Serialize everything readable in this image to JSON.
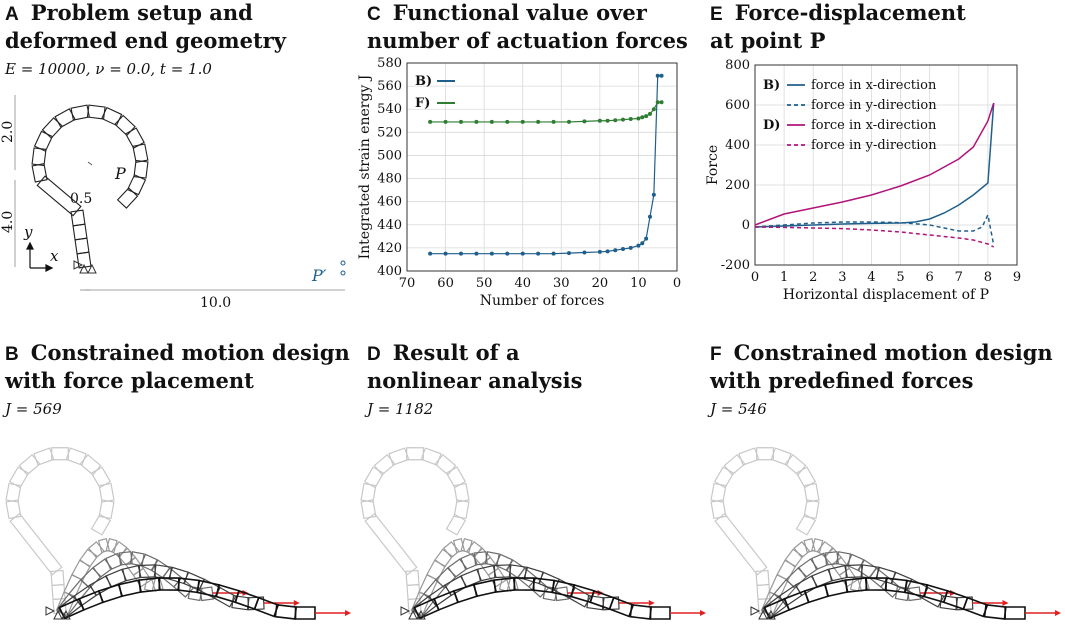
{
  "panelA": {
    "letter": "A",
    "title_line1": "Problem setup and",
    "title_line2": "deformed end geometry",
    "params": "E = 10000, ν = 0.0, t = 1.0",
    "dim_height_top": "2.0",
    "dim_height_bottom": "4.0",
    "dim_radius": "0.5",
    "dim_width": "10.0",
    "point_label": "P",
    "target_label": "P′",
    "axis_y": "y",
    "axis_x": "x"
  },
  "panelB": {
    "letter": "B",
    "title_line1": "Constrained motion design",
    "title_line2": "with force placement",
    "j_value": "J = 569"
  },
  "panelC": {
    "letter": "C",
    "title_line1": "Functional value over",
    "title_line2": "number of actuation forces"
  },
  "panelD": {
    "letter": "D",
    "title_line1": "Result of a",
    "title_line2": "nonlinear analysis",
    "j_value": "J = 1182"
  },
  "panelE": {
    "letter": "E",
    "title_line1": "Force-displacement",
    "title_line2": "at point P"
  },
  "panelF": {
    "letter": "F",
    "title_line1": "Constrained motion design",
    "title_line2": "with predefined forces",
    "j_value": "J = 546"
  },
  "colors": {
    "blue": "#1f5f8b",
    "green": "#2e7d32",
    "magenta": "#b0147a",
    "grid": "#d9d9d9"
  },
  "chart_data": [
    {
      "type": "scatter",
      "title": "Functional value over number of actuation forces",
      "xlabel": "Number of forces",
      "ylabel": "Integrated strain energy J",
      "xlim": [
        70,
        0
      ],
      "ylim": [
        400,
        580
      ],
      "xticks": [
        "70",
        "60",
        "50",
        "40",
        "30",
        "20",
        "10",
        "0"
      ],
      "yticks": [
        "400",
        "420",
        "440",
        "460",
        "480",
        "500",
        "520",
        "540",
        "560",
        "580"
      ],
      "legend": [
        {
          "label": "B)",
          "color": "#1f5f8b"
        },
        {
          "label": "F)",
          "color": "#2e7d32"
        }
      ],
      "series": [
        {
          "name": "B)",
          "x": [
            64,
            60,
            56,
            52,
            48,
            44,
            40,
            36,
            32,
            28,
            24,
            20,
            18,
            16,
            14,
            12,
            10,
            9,
            8,
            7,
            6,
            5,
            4
          ],
          "y": [
            415,
            415,
            415,
            415,
            415,
            415,
            415,
            415,
            415,
            415.5,
            416,
            416.5,
            417,
            418,
            419,
            420,
            422,
            424,
            428,
            447,
            466,
            569,
            569
          ]
        },
        {
          "name": "F)",
          "x": [
            64,
            60,
            56,
            52,
            48,
            44,
            40,
            36,
            32,
            28,
            24,
            20,
            18,
            16,
            14,
            12,
            10,
            9,
            8,
            7,
            6,
            5,
            4
          ],
          "y": [
            529,
            529,
            529,
            529,
            529,
            529,
            529,
            529,
            529,
            529,
            529.5,
            530,
            530,
            530.5,
            531,
            531.5,
            532,
            533,
            534,
            536,
            540,
            546,
            546
          ]
        }
      ]
    },
    {
      "type": "line",
      "title": "Force-displacement at point P",
      "xlabel": "Horizontal displacement of P",
      "ylabel": "Force",
      "xlim": [
        0,
        9
      ],
      "ylim": [
        -200,
        800
      ],
      "xticks": [
        "0",
        "1",
        "2",
        "3",
        "4",
        "5",
        "6",
        "7",
        "8",
        "9"
      ],
      "yticks": [
        "-200",
        "0",
        "200",
        "400",
        "600",
        "800"
      ],
      "legend": [
        {
          "group": "B)",
          "label": "force in x-direction",
          "color": "#1f5f8b",
          "dash": false
        },
        {
          "group": "",
          "label": "force in y-direction",
          "color": "#1f5f8b",
          "dash": true
        },
        {
          "group": "D)",
          "label": "force in x-direction",
          "color": "#b0147a",
          "dash": false
        },
        {
          "group": "",
          "label": "force in y-direction",
          "color": "#b0147a",
          "dash": true
        }
      ],
      "series": [
        {
          "name": "B) force in x-direction",
          "x": [
            0,
            1,
            2,
            3,
            4,
            5,
            5.5,
            6,
            6.5,
            7,
            7.5,
            8,
            8.2
          ],
          "y": [
            -10,
            -5,
            0,
            5,
            8,
            10,
            15,
            30,
            60,
            100,
            150,
            210,
            610
          ]
        },
        {
          "name": "B) force in y-direction",
          "x": [
            0,
            1,
            2,
            3,
            4,
            5,
            6,
            7,
            7.5,
            7.8,
            8,
            8.2
          ],
          "y": [
            -10,
            0,
            10,
            15,
            15,
            12,
            0,
            -30,
            -30,
            -10,
            50,
            -100
          ]
        },
        {
          "name": "D) force in x-direction",
          "x": [
            0,
            1,
            2,
            3,
            4,
            5,
            6,
            7,
            7.5,
            8,
            8.2
          ],
          "y": [
            0,
            55,
            85,
            115,
            150,
            195,
            250,
            330,
            390,
            520,
            610
          ]
        },
        {
          "name": "D) force in y-direction",
          "x": [
            0,
            1,
            2,
            3,
            4,
            5,
            6,
            7,
            7.5,
            8,
            8.2
          ],
          "y": [
            -10,
            -12,
            -15,
            -18,
            -25,
            -35,
            -50,
            -65,
            -75,
            -95,
            -110
          ]
        }
      ]
    }
  ]
}
